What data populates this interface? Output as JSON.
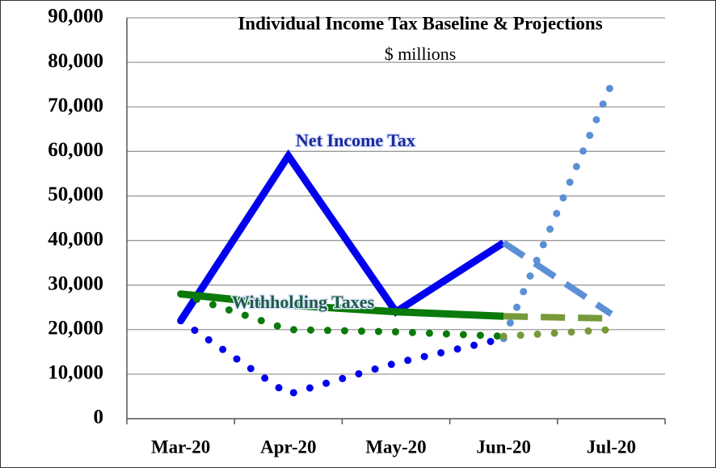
{
  "chart_data": {
    "type": "line",
    "title": "Individual Income Tax Baseline & Projections",
    "subtitle": "$ millions",
    "categories": [
      "Mar-20",
      "Apr-20",
      "May-20",
      "Jun-20",
      "Jul-20"
    ],
    "ylim": [
      0,
      90000
    ],
    "yticks": [
      0,
      {
        "value": 10000,
        "label": "10,000"
      },
      {
        "value": 20000,
        "label": "20,000"
      },
      {
        "value": 30000,
        "label": "30,000"
      },
      {
        "value": 40000,
        "label": "40,000"
      },
      {
        "value": 50000,
        "label": "50,000"
      },
      {
        "value": 60000,
        "label": "60,000"
      },
      {
        "value": 70000,
        "label": "70,000"
      },
      {
        "value": 80000,
        "label": "80,000"
      },
      {
        "value": 90000,
        "label": "90,000"
      }
    ],
    "grid": true,
    "series": [
      {
        "name": "Net Income Tax",
        "color": "#0000ee",
        "style": "solid",
        "values": [
          22000,
          59000,
          24000,
          39500,
          null
        ]
      },
      {
        "color": "#5b8fd6",
        "style": "dashed",
        "values": [
          null,
          null,
          null,
          39500,
          23500
        ]
      },
      {
        "color": "#0000ee",
        "style": "dotted",
        "values": [
          22000,
          5500,
          12500,
          18000,
          null
        ]
      },
      {
        "color": "#5b8fd6",
        "style": "dotted",
        "values": [
          null,
          null,
          null,
          18000,
          75000
        ]
      },
      {
        "name": "Withholding Taxes",
        "color": "#0a7a0a",
        "style": "solid",
        "values": [
          28000,
          25500,
          24000,
          23000,
          null
        ]
      },
      {
        "color": "#77993a",
        "style": "dashed",
        "values": [
          null,
          null,
          null,
          23000,
          22500
        ]
      },
      {
        "color": "#0a7a0a",
        "style": "dotted",
        "values": [
          28000,
          20000,
          19500,
          18500,
          null
        ]
      },
      {
        "color": "#77993a",
        "style": "dotted",
        "values": [
          null,
          null,
          null,
          18500,
          20000
        ]
      }
    ]
  }
}
